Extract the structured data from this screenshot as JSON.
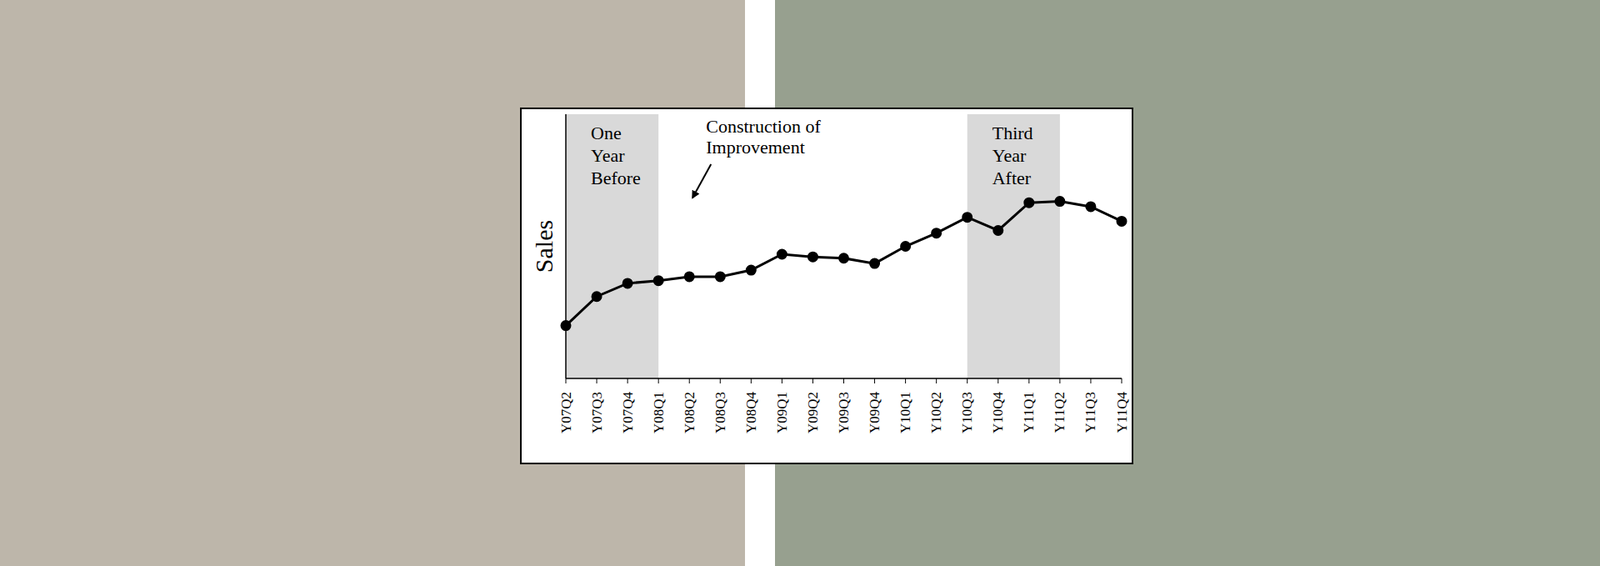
{
  "chart_data": {
    "type": "line",
    "y_label": "Sales",
    "categories": [
      "Y07Q2",
      "Y07Q3",
      "Y07Q4",
      "Y08Q1",
      "Y08Q2",
      "Y08Q3",
      "Y08Q4",
      "Y09Q1",
      "Y09Q2",
      "Y09Q3",
      "Y09Q4",
      "Y10Q1",
      "Y10Q2",
      "Y10Q3",
      "Y10Q4",
      "Y11Q1",
      "Y11Q2",
      "Y11Q3",
      "Y11Q4"
    ],
    "values": [
      2.0,
      3.1,
      3.6,
      3.7,
      3.85,
      3.85,
      4.1,
      4.7,
      4.6,
      4.55,
      4.35,
      5.0,
      5.5,
      6.1,
      5.6,
      6.65,
      6.7,
      6.5,
      5.95
    ],
    "color": "#000000",
    "marker": "circle",
    "ylim": [
      0,
      10
    ],
    "yticks": [
      0,
      1,
      2,
      3,
      4,
      5,
      6,
      7,
      8,
      9,
      10
    ],
    "tick_labels": "x",
    "grid": false,
    "shaded_periods": [
      {
        "label": "One Year Before",
        "start": "Y07Q2",
        "end": "Y08Q1",
        "color": "#d9d9d9"
      },
      {
        "label": "Third Year After",
        "start": "Y10Q3",
        "end": "Y11Q2",
        "color": "#d9d9d9"
      }
    ],
    "construction": {
      "label": "Construction of Improvement",
      "start": "Y08Q2",
      "end": "Y08Q2"
    }
  }
}
